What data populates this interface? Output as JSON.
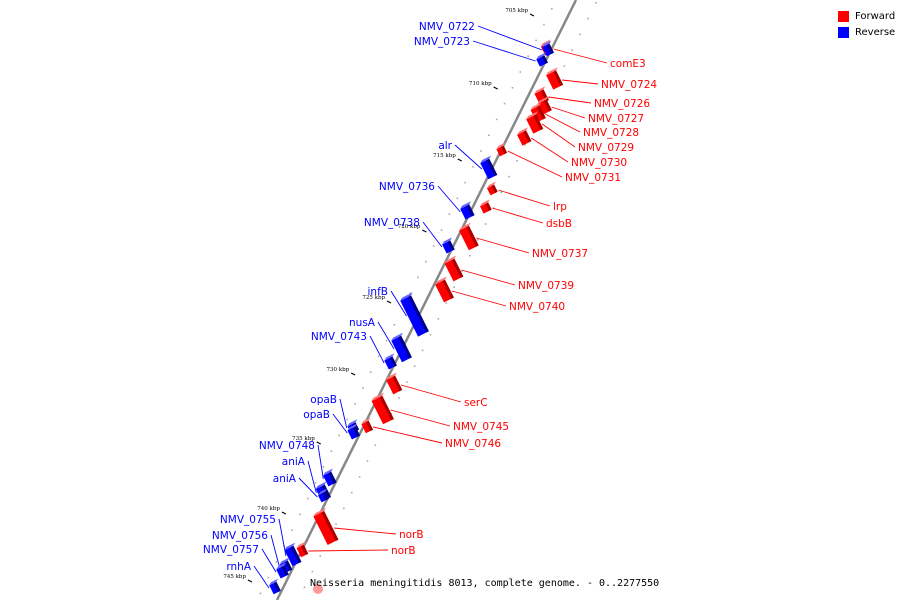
{
  "legend": {
    "forward": {
      "label": "Forward",
      "color": "#ff0000"
    },
    "reverse": {
      "label": "Reverse",
      "color": "#0000ff"
    }
  },
  "caption": "Neisseria meningitidis 8013, complete genome. - 0..2277550",
  "ticks": [
    "705 kbp",
    "710 kbp",
    "715 kbp",
    "720 kbp",
    "725 kbp",
    "730 kbp",
    "735 kbp",
    "740 kbp",
    "745 kbp"
  ],
  "genes": [
    {
      "name": "comE3",
      "strand": "forward"
    },
    {
      "name": "NMV_0722",
      "strand": "reverse"
    },
    {
      "name": "NMV_0723",
      "strand": "reverse"
    },
    {
      "name": "NMV_0724",
      "strand": "forward"
    },
    {
      "name": "NMV_0726",
      "strand": "forward"
    },
    {
      "name": "NMV_0727",
      "strand": "forward"
    },
    {
      "name": "NMV_0728",
      "strand": "forward"
    },
    {
      "name": "NMV_0729",
      "strand": "forward"
    },
    {
      "name": "NMV_0730",
      "strand": "forward"
    },
    {
      "name": "NMV_0731",
      "strand": "forward"
    },
    {
      "name": "alr",
      "strand": "reverse"
    },
    {
      "name": "lrp",
      "strand": "forward"
    },
    {
      "name": "dsbB",
      "strand": "forward"
    },
    {
      "name": "NMV_0736",
      "strand": "reverse"
    },
    {
      "name": "NMV_0738",
      "strand": "reverse"
    },
    {
      "name": "NMV_0737",
      "strand": "forward"
    },
    {
      "name": "NMV_0739",
      "strand": "forward"
    },
    {
      "name": "NMV_0740",
      "strand": "forward"
    },
    {
      "name": "infB",
      "strand": "reverse"
    },
    {
      "name": "nusA",
      "strand": "reverse"
    },
    {
      "name": "NMV_0743",
      "strand": "reverse"
    },
    {
      "name": "serC",
      "strand": "forward"
    },
    {
      "name": "NMV_0745",
      "strand": "forward"
    },
    {
      "name": "NMV_0746",
      "strand": "forward"
    },
    {
      "name": "opaB",
      "strand": "reverse"
    },
    {
      "name": "opaB",
      "strand": "reverse"
    },
    {
      "name": "NMV_0748",
      "strand": "reverse"
    },
    {
      "name": "aniA",
      "strand": "reverse"
    },
    {
      "name": "aniA",
      "strand": "reverse"
    },
    {
      "name": "norB",
      "strand": "forward"
    },
    {
      "name": "norB",
      "strand": "forward"
    },
    {
      "name": "NMV_0755",
      "strand": "reverse"
    },
    {
      "name": "NMV_0756",
      "strand": "reverse"
    },
    {
      "name": "NMV_0757",
      "strand": "reverse"
    },
    {
      "name": "rnhA",
      "strand": "reverse"
    }
  ]
}
